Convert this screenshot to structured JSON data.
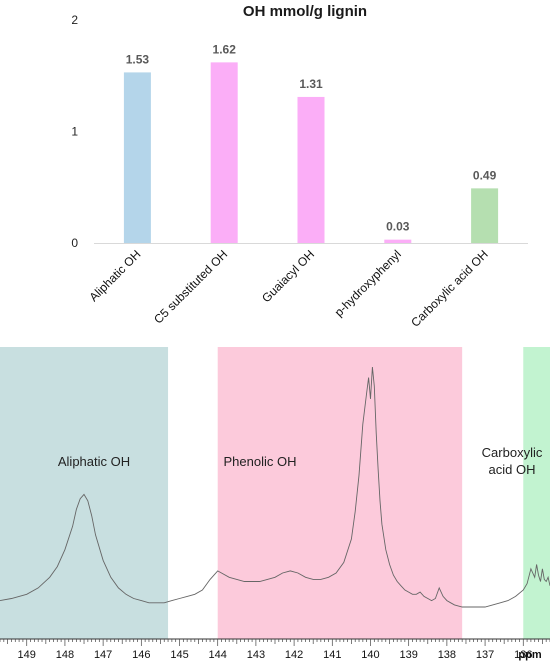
{
  "chart_data": [
    {
      "type": "bar",
      "title": "OH mmol/g lignin",
      "categories": [
        "Aliphatic OH",
        "C5 substituted OH",
        "Guaiacyl OH",
        "p-hydroxyphenyl",
        "Carboxylic acid OH"
      ],
      "values": [
        1.53,
        1.62,
        1.31,
        0.03,
        0.49
      ],
      "value_labels": [
        "1.53",
        "1.62",
        "1.31",
        "0.03",
        "0.49"
      ],
      "bar_colors": [
        "#b4d5ea",
        "#fbaef7",
        "#fbaef7",
        "#fbaef7",
        "#b5dfb0"
      ],
      "ylim": [
        0,
        2
      ],
      "yticks": [
        0,
        1,
        2
      ],
      "ytick_labels": [
        "0",
        "1",
        "2"
      ],
      "xlabel": "",
      "ylabel": "",
      "grid": false,
      "legend": "none"
    },
    {
      "type": "line",
      "description_type": "spectrum",
      "xlabel": "ppm",
      "x_reversed": true,
      "xlim": [
        149.7,
        135.3
      ],
      "xticks": [
        149,
        148,
        147,
        146,
        145,
        144,
        143,
        142,
        141,
        140,
        139,
        138,
        137,
        136
      ],
      "xtick_labels": [
        "149",
        "148",
        "147",
        "146",
        "145",
        "144",
        "143",
        "142",
        "141",
        "140",
        "139",
        "138",
        "137",
        "136"
      ],
      "regions": [
        {
          "label_lines": [
            "Aliphatic OH"
          ],
          "from_ppm": 150.0,
          "to_ppm": 145.3,
          "color": "#c8dfe0"
        },
        {
          "label_lines": [
            "Phenolic OH"
          ],
          "from_ppm": 144.0,
          "to_ppm": 137.6,
          "color": "#fccadb"
        },
        {
          "label_lines": [
            "Carboxylic",
            "acid OH"
          ],
          "from_ppm": 136.0,
          "to_ppm": 134.9,
          "color": "#c2f3d0"
        }
      ],
      "series": [
        {
          "color": "#666666",
          "x": [
            149.7,
            149.4,
            149.0,
            148.7,
            148.4,
            148.2,
            148.0,
            147.8,
            147.7,
            147.6,
            147.5,
            147.4,
            147.3,
            147.2,
            147.0,
            146.8,
            146.6,
            146.4,
            146.2,
            146.0,
            145.8,
            145.6,
            145.4,
            145.2,
            145.0,
            144.8,
            144.6,
            144.4,
            144.2,
            144.0,
            143.9,
            143.7,
            143.5,
            143.3,
            143.1,
            142.9,
            142.7,
            142.5,
            142.3,
            142.1,
            141.9,
            141.7,
            141.5,
            141.3,
            141.1,
            140.9,
            140.7,
            140.5,
            140.4,
            140.3,
            140.2,
            140.1,
            140.05,
            140.0,
            139.95,
            139.9,
            139.85,
            139.8,
            139.75,
            139.7,
            139.6,
            139.5,
            139.4,
            139.3,
            139.2,
            139.1,
            139.0,
            138.9,
            138.8,
            138.7,
            138.6,
            138.5,
            138.4,
            138.3,
            138.2,
            138.1,
            138.0,
            137.9,
            137.8,
            137.6,
            137.4,
            137.2,
            137.0,
            136.8,
            136.6,
            136.4,
            136.2,
            136.0,
            135.9,
            135.8,
            135.7,
            135.65,
            135.6,
            135.55,
            135.5,
            135.45,
            135.4,
            135.35,
            135.3
          ],
          "y": [
            0.03,
            0.04,
            0.06,
            0.09,
            0.14,
            0.19,
            0.27,
            0.38,
            0.46,
            0.51,
            0.53,
            0.5,
            0.43,
            0.34,
            0.22,
            0.14,
            0.09,
            0.06,
            0.04,
            0.03,
            0.02,
            0.02,
            0.02,
            0.03,
            0.04,
            0.05,
            0.06,
            0.08,
            0.13,
            0.17,
            0.16,
            0.14,
            0.13,
            0.12,
            0.12,
            0.12,
            0.13,
            0.14,
            0.16,
            0.17,
            0.16,
            0.14,
            0.13,
            0.13,
            0.14,
            0.16,
            0.21,
            0.32,
            0.45,
            0.62,
            0.86,
            1.01,
            1.08,
            0.98,
            1.13,
            1.04,
            0.82,
            0.65,
            0.5,
            0.39,
            0.27,
            0.2,
            0.15,
            0.12,
            0.1,
            0.08,
            0.07,
            0.06,
            0.06,
            0.07,
            0.05,
            0.04,
            0.03,
            0.04,
            0.09,
            0.05,
            0.03,
            0.02,
            0.01,
            0.0,
            0.0,
            0.0,
            0.0,
            0.01,
            0.02,
            0.03,
            0.05,
            0.08,
            0.11,
            0.18,
            0.14,
            0.2,
            0.15,
            0.12,
            0.18,
            0.13,
            0.12,
            0.14,
            0.1
          ]
        }
      ]
    }
  ]
}
